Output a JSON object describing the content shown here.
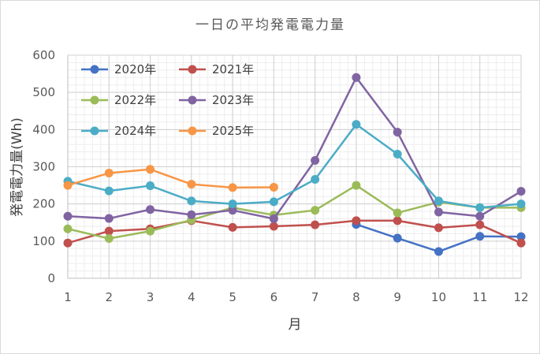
{
  "chart_data": {
    "type": "line",
    "title": "一日の平均発電電力量",
    "xlabel": "月",
    "ylabel": "発電電力量(Wh)",
    "x": [
      1,
      2,
      3,
      4,
      5,
      6,
      7,
      8,
      9,
      10,
      11,
      12
    ],
    "ylim": [
      0,
      600
    ],
    "yticks": [
      0,
      100,
      200,
      300,
      400,
      500,
      600
    ],
    "grid": "major and minor",
    "legend_position": "top-left",
    "series": [
      {
        "name": "2020年",
        "color": "#4472c4",
        "values": [
          null,
          null,
          null,
          null,
          null,
          null,
          null,
          145,
          108,
          72,
          113,
          112
        ]
      },
      {
        "name": "2021年",
        "color": "#c0504d",
        "values": [
          95,
          127,
          133,
          155,
          137,
          140,
          144,
          155,
          155,
          136,
          144,
          95
        ]
      },
      {
        "name": "2022年",
        "color": "#9bbb59",
        "values": [
          133,
          107,
          127,
          157,
          190,
          170,
          183,
          250,
          176,
          205,
          190,
          190
        ]
      },
      {
        "name": "2023年",
        "color": "#8064a2",
        "values": [
          167,
          161,
          185,
          171,
          183,
          160,
          317,
          540,
          393,
          178,
          167,
          234
        ]
      },
      {
        "name": "2024年",
        "color": "#4bacc6",
        "values": [
          261,
          235,
          249,
          208,
          200,
          206,
          266,
          414,
          334,
          208,
          190,
          200
        ]
      },
      {
        "name": "2025年",
        "color": "#f79646",
        "values": [
          250,
          283,
          293,
          253,
          244,
          245,
          null,
          null,
          null,
          null,
          null,
          null
        ]
      }
    ]
  }
}
